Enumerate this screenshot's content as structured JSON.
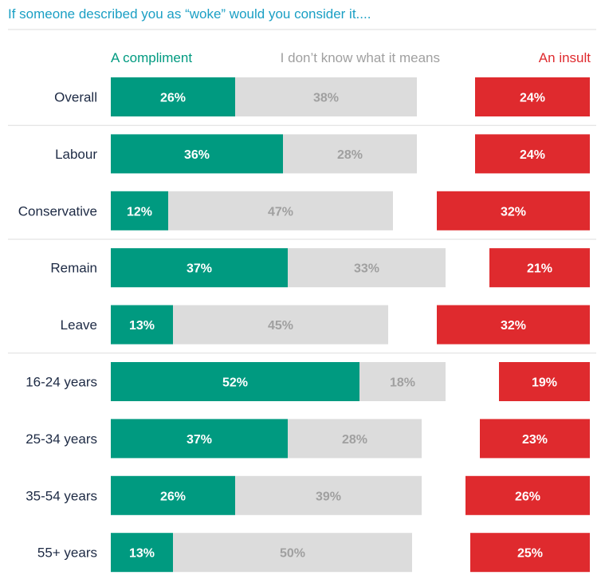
{
  "colors": {
    "compliment": "#009a80",
    "dont_know": "#dcdcdc",
    "insult": "#df2a2e",
    "title": "#1a9fc4",
    "row_label": "#1d2a44",
    "compliment_text": "#ffffff",
    "dont_know_text": "#a0a0a0",
    "insult_text": "#ffffff",
    "rule": "#dddddd"
  },
  "chart_data": {
    "type": "bar",
    "orientation": "horizontal",
    "title": "If someone described you as “woke” would you consider it....",
    "categories": [
      "Overall",
      "Labour",
      "Conservative",
      "Remain",
      "Leave",
      "16-24 years",
      "25-34 years",
      "35-54 years",
      "55+ years"
    ],
    "groups_after_index": [
      0,
      2,
      4
    ],
    "series": [
      {
        "name": "A compliment",
        "values": [
          26,
          36,
          12,
          37,
          13,
          52,
          37,
          26,
          13
        ],
        "labels": [
          "26%",
          "36%",
          "12%",
          "37%",
          "13%",
          "52%",
          "37%",
          "26%",
          "13%"
        ]
      },
      {
        "name": "I don’t know what it means",
        "values": [
          38,
          28,
          47,
          33,
          45,
          18,
          28,
          39,
          50
        ],
        "labels": [
          "38%",
          "28%",
          "47%",
          "33%",
          "45%",
          "18%",
          "28%",
          "39%",
          "50%"
        ]
      },
      {
        "name": "An insult",
        "values": [
          24,
          24,
          32,
          21,
          32,
          19,
          23,
          26,
          25
        ],
        "labels": [
          "24%",
          "24%",
          "32%",
          "21%",
          "32%",
          "19%",
          "23%",
          "26%",
          "25%"
        ]
      }
    ],
    "unit": "%"
  }
}
